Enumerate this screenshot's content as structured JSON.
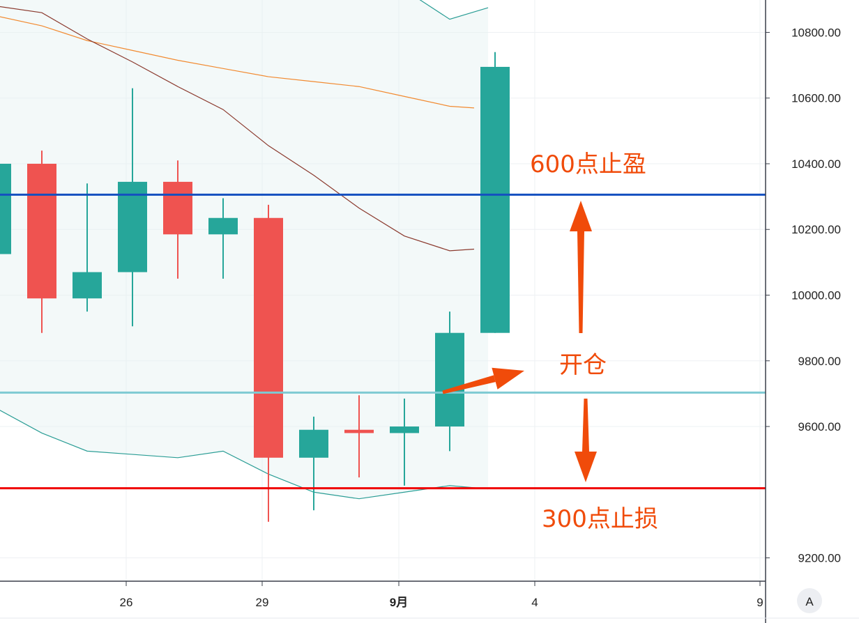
{
  "chart_data": {
    "type": "candlestick",
    "x_tick_labels": [
      "26",
      "29",
      "9月",
      "4",
      "9"
    ],
    "y_tick_labels": [
      "10800.00",
      "10600.00",
      "10400.00",
      "10200.00",
      "10000.00",
      "9800.00",
      "9600.00",
      "9200.00"
    ],
    "y_ticks": [
      10800,
      10600,
      10400,
      10200,
      10000,
      9800,
      9600,
      9200
    ],
    "ylim": [
      9200,
      10800
    ],
    "candles": [
      {
        "open": 10125,
        "high": 10400,
        "low": 10125,
        "close": 10400
      },
      {
        "open": 10400,
        "high": 10440,
        "low": 9885,
        "close": 9990
      },
      {
        "open": 9990,
        "high": 10340,
        "low": 9950,
        "close": 10070
      },
      {
        "open": 10070,
        "high": 10630,
        "low": 9905,
        "close": 10345
      },
      {
        "open": 10345,
        "high": 10410,
        "low": 10050,
        "close": 10185
      },
      {
        "open": 10185,
        "high": 10295,
        "low": 10050,
        "close": 10235
      },
      {
        "open": 10235,
        "high": 10275,
        "low": 9310,
        "close": 9505
      },
      {
        "open": 9505,
        "high": 9630,
        "low": 9345,
        "close": 9590
      },
      {
        "open": 9590,
        "high": 9695,
        "low": 9445,
        "close": 9580
      },
      {
        "open": 9580,
        "high": 9685,
        "low": 9420,
        "close": 9600
      },
      {
        "open": 9600,
        "high": 9950,
        "low": 9525,
        "close": 9885
      },
      {
        "open": 9885,
        "high": 10740,
        "low": 9885,
        "close": 10695
      }
    ],
    "ma_long": [
      10850,
      10820,
      10775,
      10745,
      10715,
      10690,
      10665,
      10650,
      10635,
      10605,
      10575,
      10570
    ],
    "ma_short": [
      10880,
      10860,
      10780,
      10710,
      10635,
      10565,
      10455,
      10365,
      10265,
      10180,
      10135,
      10140
    ],
    "band_upper": [
      10930,
      10930,
      10930,
      10930,
      10930,
      10930,
      10930,
      10930,
      10930,
      10930,
      10840,
      10875
    ],
    "band_lower": [
      9655,
      9580,
      9525,
      9515,
      9505,
      9525,
      9455,
      9400,
      9380,
      9400,
      9420,
      9410
    ],
    "horizontal_lines": [
      {
        "value": 10305.85,
        "label": "10305.85",
        "color": "#1450c0"
      },
      {
        "value": 9703.18,
        "label": "9703.18",
        "color": "#7ecad3"
      },
      {
        "value": 9412.05,
        "label": "9412.05",
        "color": "#f00000"
      }
    ],
    "last_price": {
      "value": 10693.59,
      "label": "10693.59",
      "color": "#26a69a"
    },
    "annotations": {
      "take_profit": "600点止盈",
      "open_position": "开仓",
      "stop_loss": "300点止损"
    },
    "up_color": "#26a69a",
    "down_color": "#ef5350",
    "axis_button": "A"
  }
}
